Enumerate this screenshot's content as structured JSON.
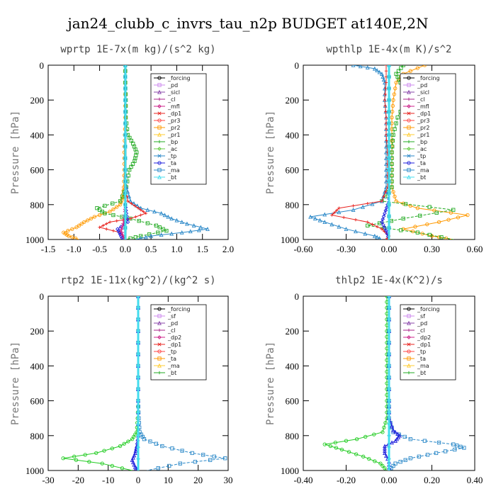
{
  "title": "jan24_clubb_c_invrs_tau_n2p  BUDGET at140E,2N",
  "chart_data": [
    {
      "type": "line",
      "title": "wprtp  1E-7x(m kg)/(s^2 kg)",
      "ylabel": "Pressure [hPa]",
      "xlim": [
        -1.5,
        2.0
      ],
      "ylim": [
        1000,
        0
      ],
      "xticks": [
        "-1.5",
        "-1.0",
        "-0.5",
        "0.0",
        "0.5",
        "1.0",
        "1.5",
        "2.0"
      ],
      "yticks": [
        "0",
        "200",
        "400",
        "600",
        "800",
        "1000"
      ],
      "legend": [
        "_forcing",
        "_pd",
        "_sicl",
        "_cl",
        "_mfl",
        "_dp1",
        "_pr3",
        "_pr2",
        "_pr1",
        "_bp",
        "_ac",
        "_tp",
        "_ta",
        "_ma",
        "_bt"
      ],
      "series": [
        {
          "name": "_bp",
          "color": "#ff9900",
          "y": [
            0,
            100,
            200,
            300,
            400,
            500,
            600,
            700,
            760,
            800,
            840,
            870,
            900,
            930,
            960,
            980,
            1000
          ],
          "values": [
            0.0,
            0.0,
            0.0,
            0.0,
            -0.01,
            -0.02,
            -0.02,
            -0.03,
            -0.05,
            -0.1,
            -0.3,
            -0.6,
            -0.8,
            -0.95,
            -1.2,
            -1.1,
            -0.9
          ]
        },
        {
          "name": "_ac",
          "color": "#22aa22",
          "y": [
            0,
            100,
            200,
            300,
            400,
            450,
            500,
            550,
            600,
            700,
            780,
            820,
            850,
            880,
            920,
            950,
            980,
            1000
          ],
          "values": [
            0.0,
            0.0,
            0.01,
            0.01,
            0.05,
            0.15,
            0.22,
            0.18,
            0.08,
            0.02,
            -0.1,
            -0.55,
            -0.4,
            0.1,
            0.6,
            0.8,
            0.3,
            0.0
          ]
        },
        {
          "name": "_tp",
          "color": "#2a88c8",
          "y": [
            0,
            200,
            400,
            600,
            700,
            780,
            820,
            850,
            880,
            910,
            940,
            960,
            980,
            1000
          ],
          "values": [
            0.0,
            0.0,
            0.0,
            0.0,
            0.02,
            0.1,
            0.3,
            0.7,
            0.9,
            1.2,
            1.6,
            1.1,
            0.5,
            0.2
          ]
        },
        {
          "name": "_dp1",
          "color": "#e8231f",
          "y": [
            0,
            200,
            400,
            600,
            700,
            780,
            820,
            850,
            880,
            900,
            930,
            960,
            1000
          ],
          "values": [
            0.0,
            0.0,
            0.0,
            0.0,
            0.0,
            0.05,
            0.25,
            0.4,
            0.1,
            -0.3,
            -0.5,
            -0.1,
            0.0
          ]
        },
        {
          "name": "_ta",
          "color": "#2222dd",
          "y": [
            0,
            200,
            400,
            600,
            800,
            850,
            900,
            940,
            970,
            1000
          ],
          "values": [
            0.0,
            0.0,
            0.0,
            0.0,
            0.0,
            0.02,
            0.05,
            -0.15,
            -0.1,
            -0.05
          ]
        },
        {
          "name": "_pr1",
          "color": "#cc2288",
          "y": [
            0,
            200,
            400,
            600,
            800,
            900,
            950,
            1000
          ],
          "values": [
            0.0,
            0.0,
            0.0,
            0.0,
            0.0,
            -0.03,
            -0.08,
            -0.02
          ]
        },
        {
          "name": "_forcing",
          "color": "#000000",
          "y": [
            0,
            200,
            400,
            600,
            800,
            1000
          ],
          "values": [
            0.0,
            0.0,
            0.0,
            0.0,
            0.0,
            0.0
          ]
        },
        {
          "name": "_bt",
          "color": "#44ddee",
          "y": [
            0,
            200,
            400,
            600,
            800,
            1000
          ],
          "values": [
            0.0,
            0.0,
            0.0,
            0.0,
            0.0,
            0.0
          ]
        }
      ]
    },
    {
      "type": "line",
      "title": "wpthlp  1E-4x(m K)/s^2",
      "ylabel": "Pressure [hPa]",
      "xlim": [
        -0.6,
        0.6
      ],
      "ylim": [
        1000,
        0
      ],
      "xticks": [
        "-0.60",
        "-0.30",
        "0.00",
        "0.30",
        "0.60"
      ],
      "yticks": [
        "0",
        "200",
        "400",
        "600",
        "800",
        "1000"
      ],
      "legend": [
        "_forcing",
        "_pd",
        "_sicl",
        "_cl",
        "_mfl",
        "_dp1",
        "_pr3",
        "_pr2",
        "_pr1",
        "_bp",
        "_ac",
        "_tp",
        "_ta",
        "_ma",
        "_bt"
      ],
      "series": [
        {
          "name": "_bp",
          "color": "#ff9900",
          "y": [
            0,
            50,
            100,
            200,
            300,
            400,
            500,
            600,
            700,
            780,
            820,
            860,
            900,
            940,
            980,
            1000
          ],
          "values": [
            0.25,
            0.1,
            0.05,
            0.03,
            0.02,
            0.02,
            0.02,
            0.02,
            0.02,
            0.05,
            0.2,
            0.55,
            0.35,
            0.1,
            0.3,
            0.45
          ]
        },
        {
          "name": "_ac",
          "color": "#22aa22",
          "y": [
            0,
            50,
            100,
            150,
            200,
            300,
            400,
            500,
            600,
            700,
            780,
            830,
            880,
            920,
            960,
            1000
          ],
          "values": [
            0.1,
            0.05,
            0.08,
            0.12,
            0.12,
            0.06,
            0.03,
            0.02,
            0.02,
            0.02,
            -0.05,
            0.45,
            0.1,
            -0.15,
            0.2,
            0.45
          ]
        },
        {
          "name": "_tp",
          "color": "#2a88c8",
          "y": [
            0,
            20,
            50,
            100,
            200,
            300,
            400,
            500,
            600,
            700,
            780,
            830,
            870,
            900,
            940,
            980,
            1000
          ],
          "values": [
            -0.25,
            -0.1,
            -0.05,
            -0.03,
            -0.03,
            -0.02,
            -0.02,
            -0.02,
            -0.02,
            -0.02,
            -0.05,
            -0.25,
            -0.55,
            -0.45,
            -0.3,
            -0.1,
            -0.05
          ]
        },
        {
          "name": "_dp1",
          "color": "#e8231f",
          "y": [
            0,
            100,
            200,
            300,
            400,
            500,
            600,
            700,
            780,
            820,
            860,
            900,
            940,
            980,
            1000
          ],
          "values": [
            -0.02,
            -0.02,
            -0.03,
            -0.02,
            -0.02,
            -0.01,
            -0.01,
            -0.01,
            -0.05,
            -0.35,
            -0.4,
            -0.15,
            -0.05,
            0.0,
            -0.02
          ]
        },
        {
          "name": "_ta",
          "color": "#2222dd",
          "y": [
            0,
            200,
            400,
            600,
            800,
            850,
            900,
            950,
            1000
          ],
          "values": [
            0.0,
            0.0,
            0.0,
            0.0,
            -0.01,
            -0.03,
            -0.05,
            -0.02,
            0.0
          ]
        },
        {
          "name": "_pr1",
          "color": "#cc2288",
          "y": [
            0,
            200,
            400,
            600,
            800,
            1000
          ],
          "values": [
            0.0,
            0.0,
            0.0,
            0.0,
            0.0,
            0.0
          ]
        },
        {
          "name": "_forcing",
          "color": "#000000",
          "y": [
            0,
            200,
            400,
            600,
            800,
            1000
          ],
          "values": [
            0.0,
            0.0,
            0.0,
            0.0,
            0.0,
            0.0
          ]
        },
        {
          "name": "_bt",
          "color": "#44ddee",
          "y": [
            0,
            200,
            400,
            600,
            800,
            1000
          ],
          "values": [
            0.0,
            0.0,
            0.0,
            0.0,
            0.0,
            0.0
          ]
        }
      ]
    },
    {
      "type": "line",
      "title": "rtp2  1E-11x(kg^2)/(kg^2 s)",
      "ylabel": "Pressure [hPa]",
      "xlim": [
        -30,
        30
      ],
      "ylim": [
        1000,
        0
      ],
      "xticks": [
        "-30",
        "-20",
        "-10",
        "0",
        "10",
        "20",
        "30"
      ],
      "yticks": [
        "0",
        "200",
        "400",
        "600",
        "800",
        "1000"
      ],
      "legend": [
        "_forcing",
        "_sf",
        "_pd",
        "_cl",
        "_dp2",
        "_dp1",
        "_tp",
        "_ta",
        "_ma",
        "_bt"
      ],
      "series": [
        {
          "name": "_dp1",
          "color": "#22cc22",
          "y": [
            0,
            200,
            400,
            600,
            700,
            780,
            820,
            860,
            900,
            930,
            960,
            1000
          ],
          "values": [
            0.0,
            0.0,
            0.0,
            0.0,
            -0.2,
            -0.5,
            -2,
            -6,
            -14,
            -25,
            -12,
            -2
          ]
        },
        {
          "name": "_tp",
          "color": "#2a88c8",
          "y": [
            0,
            200,
            400,
            600,
            700,
            780,
            820,
            860,
            900,
            930,
            960,
            1000
          ],
          "values": [
            0.0,
            0.0,
            0.0,
            0.0,
            0.2,
            0.5,
            2,
            8,
            18,
            29,
            14,
            3
          ]
        },
        {
          "name": "_ta",
          "color": "#2222dd",
          "y": [
            0,
            200,
            400,
            600,
            800,
            860,
            900,
            940,
            980,
            1000
          ],
          "values": [
            0.0,
            0.0,
            0.0,
            0.0,
            0.0,
            -0.5,
            -1,
            -2,
            -1,
            0.0
          ]
        },
        {
          "name": "_forcing",
          "color": "#e8231f",
          "y": [
            0,
            200,
            400,
            600,
            800,
            1000
          ],
          "values": [
            0.0,
            0.0,
            0.0,
            0.0,
            0.0,
            0.0
          ]
        },
        {
          "name": "_bt",
          "color": "#44ddee",
          "y": [
            0,
            200,
            400,
            600,
            800,
            1000
          ],
          "values": [
            0.0,
            0.0,
            0.0,
            0.0,
            0.0,
            0.0
          ]
        }
      ]
    },
    {
      "type": "line",
      "title": "thlp2  1E-4x(K^2)/s",
      "ylabel": "Pressure [hPa]",
      "xlim": [
        -0.4,
        0.4
      ],
      "ylim": [
        1000,
        0
      ],
      "xticks": [
        "-0.40",
        "-0.20",
        "0.00",
        "0.20",
        "0.40"
      ],
      "yticks": [
        "0",
        "200",
        "400",
        "600",
        "800",
        "1000"
      ],
      "legend": [
        "_forcing",
        "_sf",
        "_pd",
        "_cl",
        "_dp2",
        "_dp1",
        "_tp",
        "_ta",
        "_ma",
        "_bt"
      ],
      "series": [
        {
          "name": "_dp1",
          "color": "#22cc22",
          "y": [
            0,
            100,
            200,
            300,
            400,
            500,
            600,
            700,
            780,
            820,
            850,
            880,
            920,
            960,
            1000
          ],
          "values": [
            -0.01,
            -0.01,
            -0.01,
            -0.01,
            -0.01,
            -0.01,
            -0.01,
            -0.01,
            -0.03,
            -0.15,
            -0.3,
            -0.22,
            -0.12,
            -0.04,
            -0.01
          ]
        },
        {
          "name": "_tp",
          "color": "#2a88c8",
          "y": [
            0,
            200,
            400,
            600,
            700,
            780,
            820,
            850,
            870,
            900,
            930,
            960,
            1000
          ],
          "values": [
            0.0,
            0.0,
            0.0,
            0.0,
            0.0,
            0.02,
            0.1,
            0.3,
            0.35,
            0.22,
            0.1,
            0.03,
            0.0
          ]
        },
        {
          "name": "_ta",
          "color": "#2222dd",
          "y": [
            0,
            200,
            400,
            600,
            700,
            770,
            800,
            830,
            860,
            900,
            950,
            1000
          ],
          "values": [
            0.0,
            0.0,
            0.0,
            0.0,
            0.0,
            0.02,
            0.05,
            0.03,
            -0.02,
            -0.02,
            0.0,
            0.0
          ]
        },
        {
          "name": "_forcing",
          "color": "#e8231f",
          "y": [
            0,
            200,
            400,
            600,
            800,
            1000
          ],
          "values": [
            0.0,
            0.0,
            0.0,
            0.0,
            0.0,
            0.0
          ]
        },
        {
          "name": "_bt",
          "color": "#44ddee",
          "y": [
            0,
            200,
            400,
            600,
            800,
            1000
          ],
          "values": [
            0.0,
            0.0,
            0.0,
            0.0,
            0.0,
            0.0
          ]
        }
      ]
    }
  ]
}
